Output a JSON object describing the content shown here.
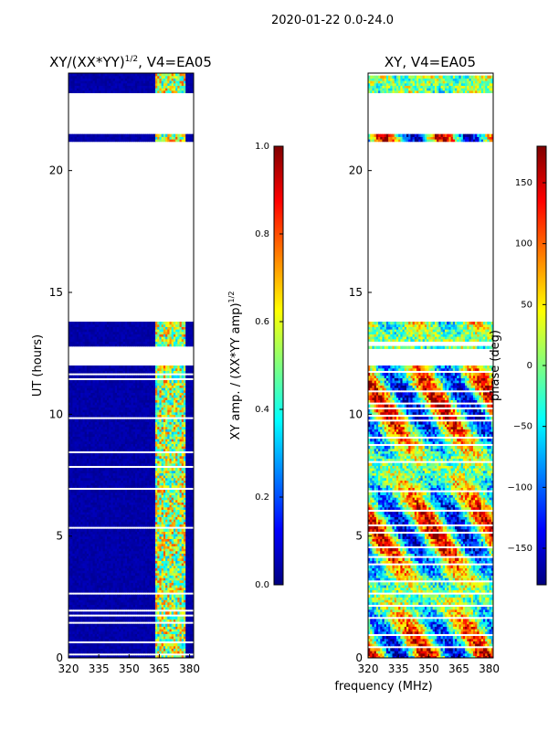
{
  "figure": {
    "suptitle": "2020-01-22 0.0-24.0",
    "xlabel_shared": "frequency (MHz)"
  },
  "chart_data": [
    {
      "type": "heatmap",
      "title_main": "XY/(XX*YY)",
      "title_sup": "1/2",
      "title_suffix": ", V4=EA05",
      "ylabel": "UT (hours)",
      "x_range": [
        320,
        382
      ],
      "x_ticks": [
        320,
        335,
        350,
        365,
        380
      ],
      "x_tick_labels": [
        "320",
        "335",
        "350",
        "365",
        "380"
      ],
      "y_range": [
        0,
        24
      ],
      "y_ticks": [
        0,
        5,
        10,
        15,
        20
      ],
      "y_tick_labels": [
        "0",
        "5",
        "10",
        "15",
        "20"
      ],
      "blank_bands_hours": [
        [
          13.8,
          21.2
        ],
        [
          21.5,
          23.2
        ],
        [
          12.0,
          12.7
        ]
      ],
      "colorbar": {
        "label_main": "XY amp. / (XX*YY amp)",
        "label_sup": "1/2",
        "range": [
          0.0,
          1.0
        ],
        "ticks": [
          0.0,
          0.2,
          0.4,
          0.6,
          0.8,
          1.0
        ],
        "tick_labels": [
          "0.0",
          "0.2",
          "0.4",
          "0.6",
          "0.8",
          "1.0"
        ]
      }
    },
    {
      "type": "heatmap",
      "title": "XY, V4=EA05",
      "x_range": [
        320,
        382
      ],
      "x_ticks": [
        320,
        335,
        350,
        365,
        380
      ],
      "x_tick_labels": [
        "320",
        "335",
        "350",
        "365",
        "380"
      ],
      "y_range": [
        0,
        24
      ],
      "y_ticks": [
        0,
        5,
        10,
        15,
        20
      ],
      "y_tick_labels": [
        "0",
        "5",
        "10",
        "15",
        "20"
      ],
      "blank_bands_hours": [
        [
          13.8,
          21.2
        ],
        [
          21.5,
          23.2
        ],
        [
          12.0,
          12.7
        ]
      ],
      "colorbar": {
        "label": "phase (deg)",
        "range": [
          -180,
          180
        ],
        "ticks": [
          150,
          100,
          50,
          0,
          -50,
          -100,
          -150
        ],
        "tick_labels": [
          "150",
          "100",
          "50",
          "0",
          "−50",
          "−100",
          "−150"
        ]
      }
    }
  ]
}
